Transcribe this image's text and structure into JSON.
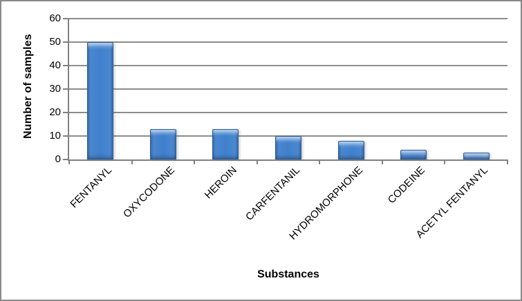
{
  "chart_data": {
    "type": "bar",
    "title": "",
    "categories": [
      "FENTANYL",
      "OXYCODONE",
      "HEROIN",
      "CARFENTANIL",
      "HYDROMORPHONE",
      "CODEINE",
      "ACETYL FENTANYL"
    ],
    "values": [
      50,
      13,
      13,
      10,
      8,
      4,
      3
    ],
    "xlabel": "Substances",
    "ylabel": "Number of samples",
    "ylim": [
      0,
      60
    ],
    "yticks": [
      0,
      10,
      20,
      30,
      40,
      50,
      60
    ],
    "grid": true,
    "legend": false,
    "colors": {
      "bar_fill": "#4080CB",
      "bar_edge": "#2A5C99",
      "gridline": "#8C8C8C",
      "axis": "#808080",
      "outer_border": "#898989",
      "text": "#000000",
      "background": "#FFFFFF"
    }
  }
}
